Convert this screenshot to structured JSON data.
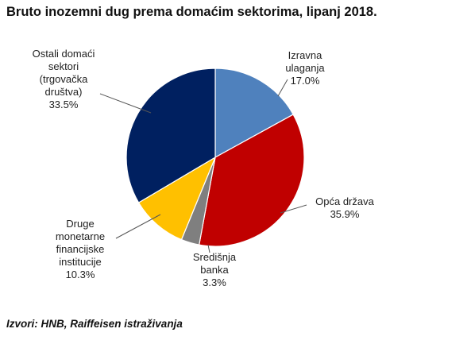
{
  "chart_data": {
    "type": "pie",
    "title": "Bruto inozemni dug prema domaćim sektorima, lipanj 2018.",
    "slices": [
      {
        "lines": [
          "Izravna",
          "ulaganja"
        ],
        "value": 17.0,
        "value_label": "17.0%",
        "color": "#4f81bd"
      },
      {
        "lines": [
          "Opća država"
        ],
        "value": 35.9,
        "value_label": "35.9%",
        "color": "#c00000"
      },
      {
        "lines": [
          "Središnja",
          "banka"
        ],
        "value": 3.3,
        "value_label": "3.3%",
        "color": "#7f7f7f"
      },
      {
        "lines": [
          "Druge",
          "monetarne",
          "financijske",
          "institucije"
        ],
        "value": 10.3,
        "value_label": "10.3%",
        "color": "#ffc000"
      },
      {
        "lines": [
          "Ostali domaći",
          "sektori",
          "(trgovačka",
          "društva)"
        ],
        "value": 33.5,
        "value_label": "33.5%",
        "color": "#002060"
      }
    ],
    "source": "Izvori: HNB, Raiffeisen istraživanja"
  }
}
